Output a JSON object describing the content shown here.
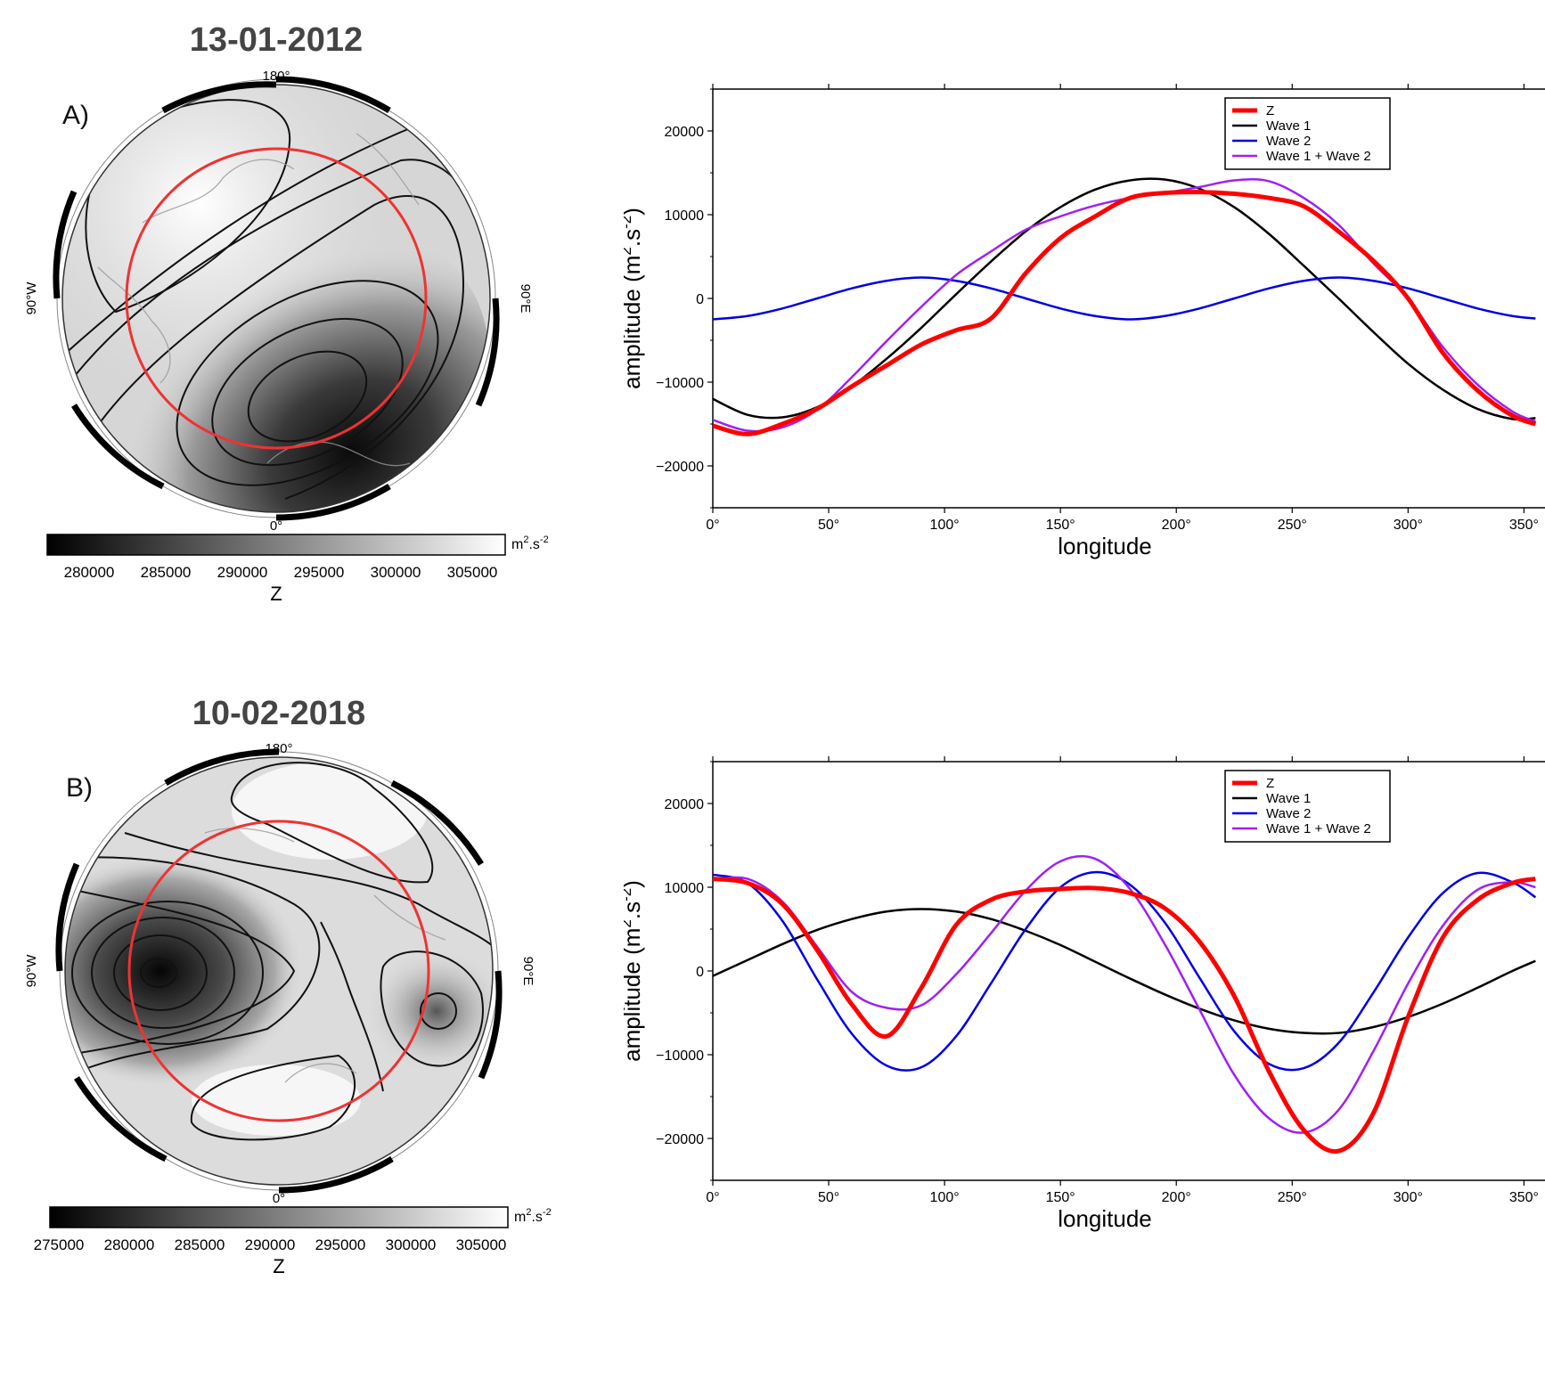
{
  "colors": {
    "z": "#ff0000",
    "wave1": "#000000",
    "wave2": "#0000e0",
    "wave12": "#a020f0",
    "circle": "#ee3333"
  },
  "panels": [
    {
      "title": "13-01-2012",
      "letter": "A)",
      "map": {
        "lon_top": "180°",
        "lon_bottom": "0°",
        "lon_left": "90°W",
        "lon_right": "90°E",
        "colorbar": {
          "unit_base": "m",
          "unit_sup1": "2",
          "unit_mid": ".s",
          "unit_sup2": "-2",
          "ticks": [
            "280000",
            "285000",
            "290000",
            "295000",
            "300000",
            "305000"
          ],
          "label": "Z"
        }
      }
    },
    {
      "title": "10-02-2018",
      "letter": "B)",
      "map": {
        "lon_top": "180°",
        "lon_bottom": "0°",
        "lon_left": "90°W",
        "lon_right": "90°E",
        "colorbar": {
          "unit_base": "m",
          "unit_sup1": "2",
          "unit_mid": ".s",
          "unit_sup2": "-2",
          "ticks": [
            "275000",
            "280000",
            "285000",
            "290000",
            "295000",
            "300000",
            "305000"
          ],
          "label": "Z"
        }
      }
    }
  ],
  "chart_data": [
    {
      "type": "line",
      "xlabel": "longitude",
      "ylabel": "amplitude (m",
      "ylabel_sup1": "2",
      "ylabel_mid": ".s",
      "ylabel_sup2": "-2",
      "ylabel_end": ")",
      "xlim": [
        0,
        360
      ],
      "ylim": [
        -25000,
        25000
      ],
      "x_ticks": [
        "0°",
        "50°",
        "100°",
        "150°",
        "200°",
        "250°",
        "300°",
        "350°"
      ],
      "y_ticks": [
        "−20000",
        "−10000",
        "0",
        "10000",
        "20000"
      ],
      "legend_position": "top-right",
      "x": [
        0,
        15,
        30,
        45,
        60,
        75,
        90,
        105,
        120,
        135,
        150,
        165,
        180,
        195,
        210,
        225,
        240,
        255,
        270,
        285,
        300,
        315,
        330,
        345,
        355
      ],
      "series": [
        {
          "name": "Z",
          "color_key": "z",
          "width": 5,
          "values": [
            -15200,
            -16200,
            -15000,
            -13200,
            -10500,
            -8000,
            -5500,
            -3800,
            -2400,
            3000,
            7200,
            9800,
            12000,
            12600,
            12700,
            12500,
            12000,
            11000,
            8000,
            4500,
            0,
            -6500,
            -11000,
            -14000,
            -15000
          ]
        },
        {
          "name": "Wave 1",
          "color_key": "wave1",
          "width": 2.5,
          "values": [
            -12000,
            -13900,
            -14200,
            -13000,
            -10500,
            -7200,
            -3500,
            500,
            4400,
            8000,
            10900,
            13000,
            14100,
            14200,
            13100,
            10900,
            7700,
            3900,
            0,
            -4000,
            -7800,
            -10900,
            -13200,
            -14400,
            -14300
          ]
        },
        {
          "name": "Wave 2",
          "color_key": "wave2",
          "width": 2.5,
          "values": [
            -2500,
            -2100,
            -1200,
            0,
            1200,
            2100,
            2500,
            2100,
            1200,
            0,
            -1200,
            -2100,
            -2500,
            -2100,
            -1200,
            0,
            1200,
            2100,
            2500,
            2100,
            1200,
            0,
            -1200,
            -2100,
            -2400
          ]
        },
        {
          "name": "Wave 1 + Wave 2",
          "color_key": "wave12",
          "width": 2.5,
          "values": [
            -14500,
            -15800,
            -15400,
            -13300,
            -9400,
            -5100,
            -1000,
            2800,
            5600,
            8200,
            9800,
            11100,
            12000,
            12600,
            13300,
            14100,
            14000,
            12000,
            8800,
            4200,
            0,
            -5800,
            -10300,
            -13500,
            -14700
          ]
        }
      ]
    },
    {
      "type": "line",
      "xlabel": "longitude",
      "ylabel": "amplitude (m",
      "ylabel_sup1": "2",
      "ylabel_mid": ".s",
      "ylabel_sup2": "-2",
      "ylabel_end": ")",
      "xlim": [
        0,
        360
      ],
      "ylim": [
        -25000,
        25000
      ],
      "x_ticks": [
        "0°",
        "50°",
        "100°",
        "150°",
        "200°",
        "250°",
        "300°",
        "350°"
      ],
      "y_ticks": [
        "−20000",
        "−10000",
        "0",
        "10000",
        "20000"
      ],
      "legend_position": "top-right",
      "x": [
        0,
        15,
        30,
        45,
        60,
        75,
        90,
        105,
        120,
        135,
        150,
        165,
        180,
        195,
        210,
        225,
        240,
        255,
        270,
        285,
        300,
        315,
        330,
        345,
        355
      ],
      "series": [
        {
          "name": "Z",
          "color_key": "z",
          "width": 5,
          "values": [
            11000,
            10500,
            8000,
            2500,
            -4000,
            -7800,
            -2000,
            5500,
            8500,
            9500,
            9800,
            9900,
            9300,
            7500,
            3500,
            -3000,
            -12000,
            -19000,
            -21500,
            -17000,
            -5500,
            4000,
            8500,
            10500,
            11000
          ]
        },
        {
          "name": "Wave 1",
          "color_key": "wave1",
          "width": 2.5,
          "values": [
            -600,
            1300,
            3200,
            4900,
            6200,
            7100,
            7400,
            7100,
            6200,
            4800,
            3100,
            1100,
            -900,
            -2800,
            -4500,
            -5900,
            -6900,
            -7400,
            -7400,
            -6700,
            -5500,
            -3900,
            -2000,
            0,
            1200
          ]
        },
        {
          "name": "Wave 2",
          "color_key": "wave2",
          "width": 2.5,
          "values": [
            11500,
            10500,
            6000,
            -1000,
            -7500,
            -11300,
            -11500,
            -7800,
            -1500,
            5000,
            10000,
            11800,
            10300,
            5800,
            -800,
            -7200,
            -11100,
            -11600,
            -8600,
            -2600,
            4000,
            9300,
            11700,
            10600,
            8800
          ]
        },
        {
          "name": "Wave 1 + Wave 2",
          "color_key": "wave12",
          "width": 2.5,
          "values": [
            10900,
            11000,
            8300,
            2900,
            -2500,
            -4400,
            -4100,
            -400,
            4500,
            9600,
            13100,
            13400,
            9800,
            3200,
            -4600,
            -12400,
            -17600,
            -19300,
            -16600,
            -9600,
            -1500,
            5400,
            9700,
            10600,
            10000
          ]
        }
      ]
    }
  ]
}
